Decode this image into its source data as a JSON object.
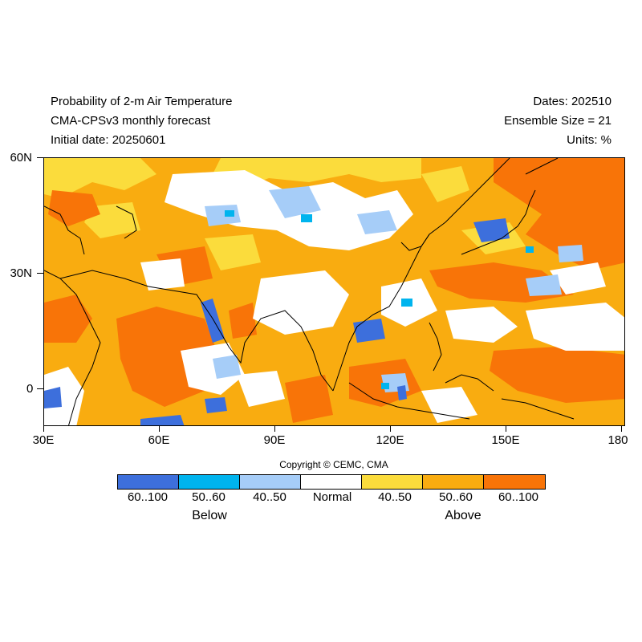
{
  "header": {
    "title": "Probability of 2-m Air Temperature",
    "subtitle": "CMA-CPSv3 monthly forecast",
    "initial_date": "Initial date: 20250601",
    "dates": "Dates: 202510",
    "ensemble": "Ensemble Size = 21",
    "units": "Units: %"
  },
  "axes": {
    "lat_labels": [
      "60N",
      "30N",
      "0"
    ],
    "lon_labels": [
      "30E",
      "60E",
      "90E",
      "120E",
      "150E",
      "180"
    ]
  },
  "copyright": "Copyright © CEMC, CMA",
  "legend": {
    "items": [
      {
        "label": "60..100",
        "color": "#3d6fdc"
      },
      {
        "label": "50..60",
        "color": "#00b4ee"
      },
      {
        "label": "40..50",
        "color": "#a6cdf8"
      },
      {
        "label": "Normal",
        "color": "#ffffff"
      },
      {
        "label": "40..50",
        "color": "#fbdc3c"
      },
      {
        "label": "50..60",
        "color": "#f9ac10"
      },
      {
        "label": "60..100",
        "color": "#f87408"
      }
    ],
    "below_label": "Below",
    "above_label": "Above"
  }
}
